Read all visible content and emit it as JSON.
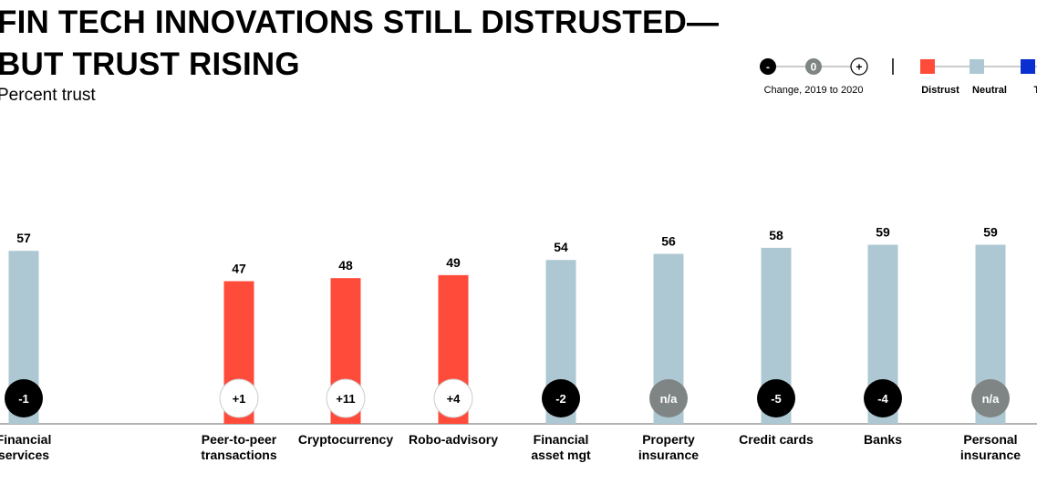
{
  "chart_data": {
    "type": "bar",
    "title": "FIN TECH INNOVATIONS STILL DISTRUSTED—BUT TRUST RISING",
    "title_lines": [
      "FIN TECH INNOVATIONS STILL DISTRUSTED—",
      "BUT TRUST RISING"
    ],
    "subtitle": "Percent trust",
    "categories": [
      [
        "Financial",
        "services"
      ],
      [
        "Peer-to-peer",
        "transactions"
      ],
      [
        "Cryptocurrency"
      ],
      [
        "Robo-advisory"
      ],
      [
        "Financial",
        "asset mgt"
      ],
      [
        "Property",
        "insurance"
      ],
      [
        "Credit cards"
      ],
      [
        "Banks"
      ],
      [
        "Personal",
        "insurance"
      ]
    ],
    "values": [
      57,
      47,
      48,
      49,
      54,
      56,
      58,
      59,
      59
    ],
    "categories_status": [
      "Neutral",
      "Distrust",
      "Distrust",
      "Distrust",
      "Neutral",
      "Neutral",
      "Neutral",
      "Neutral",
      "Neutral"
    ],
    "change": [
      "-1",
      "+1",
      "+11",
      "+4",
      "-2",
      "n/a",
      "-5",
      "-4",
      "n/a"
    ],
    "change_direction": [
      "neg",
      "pos",
      "pos",
      "pos",
      "neg",
      "zero",
      "neg",
      "neg",
      "zero"
    ],
    "grid": false,
    "legend": {
      "position": "top-right",
      "change_label": "Change, 2019 to 2020",
      "change_markers": [
        "-",
        "0",
        "+"
      ],
      "trust_levels": [
        {
          "label": "Distrust",
          "color": "#ff4b3a"
        },
        {
          "label": "Neutral",
          "color": "#adc8d3"
        },
        {
          "label": "Trust",
          "color": "#0a2fd0"
        }
      ]
    },
    "colors": {
      "Distrust": "#ff4b3a",
      "Neutral": "#adc8d3",
      "neg": "#000000",
      "zero": "#7f8584",
      "pos": "#ffffff"
    }
  }
}
